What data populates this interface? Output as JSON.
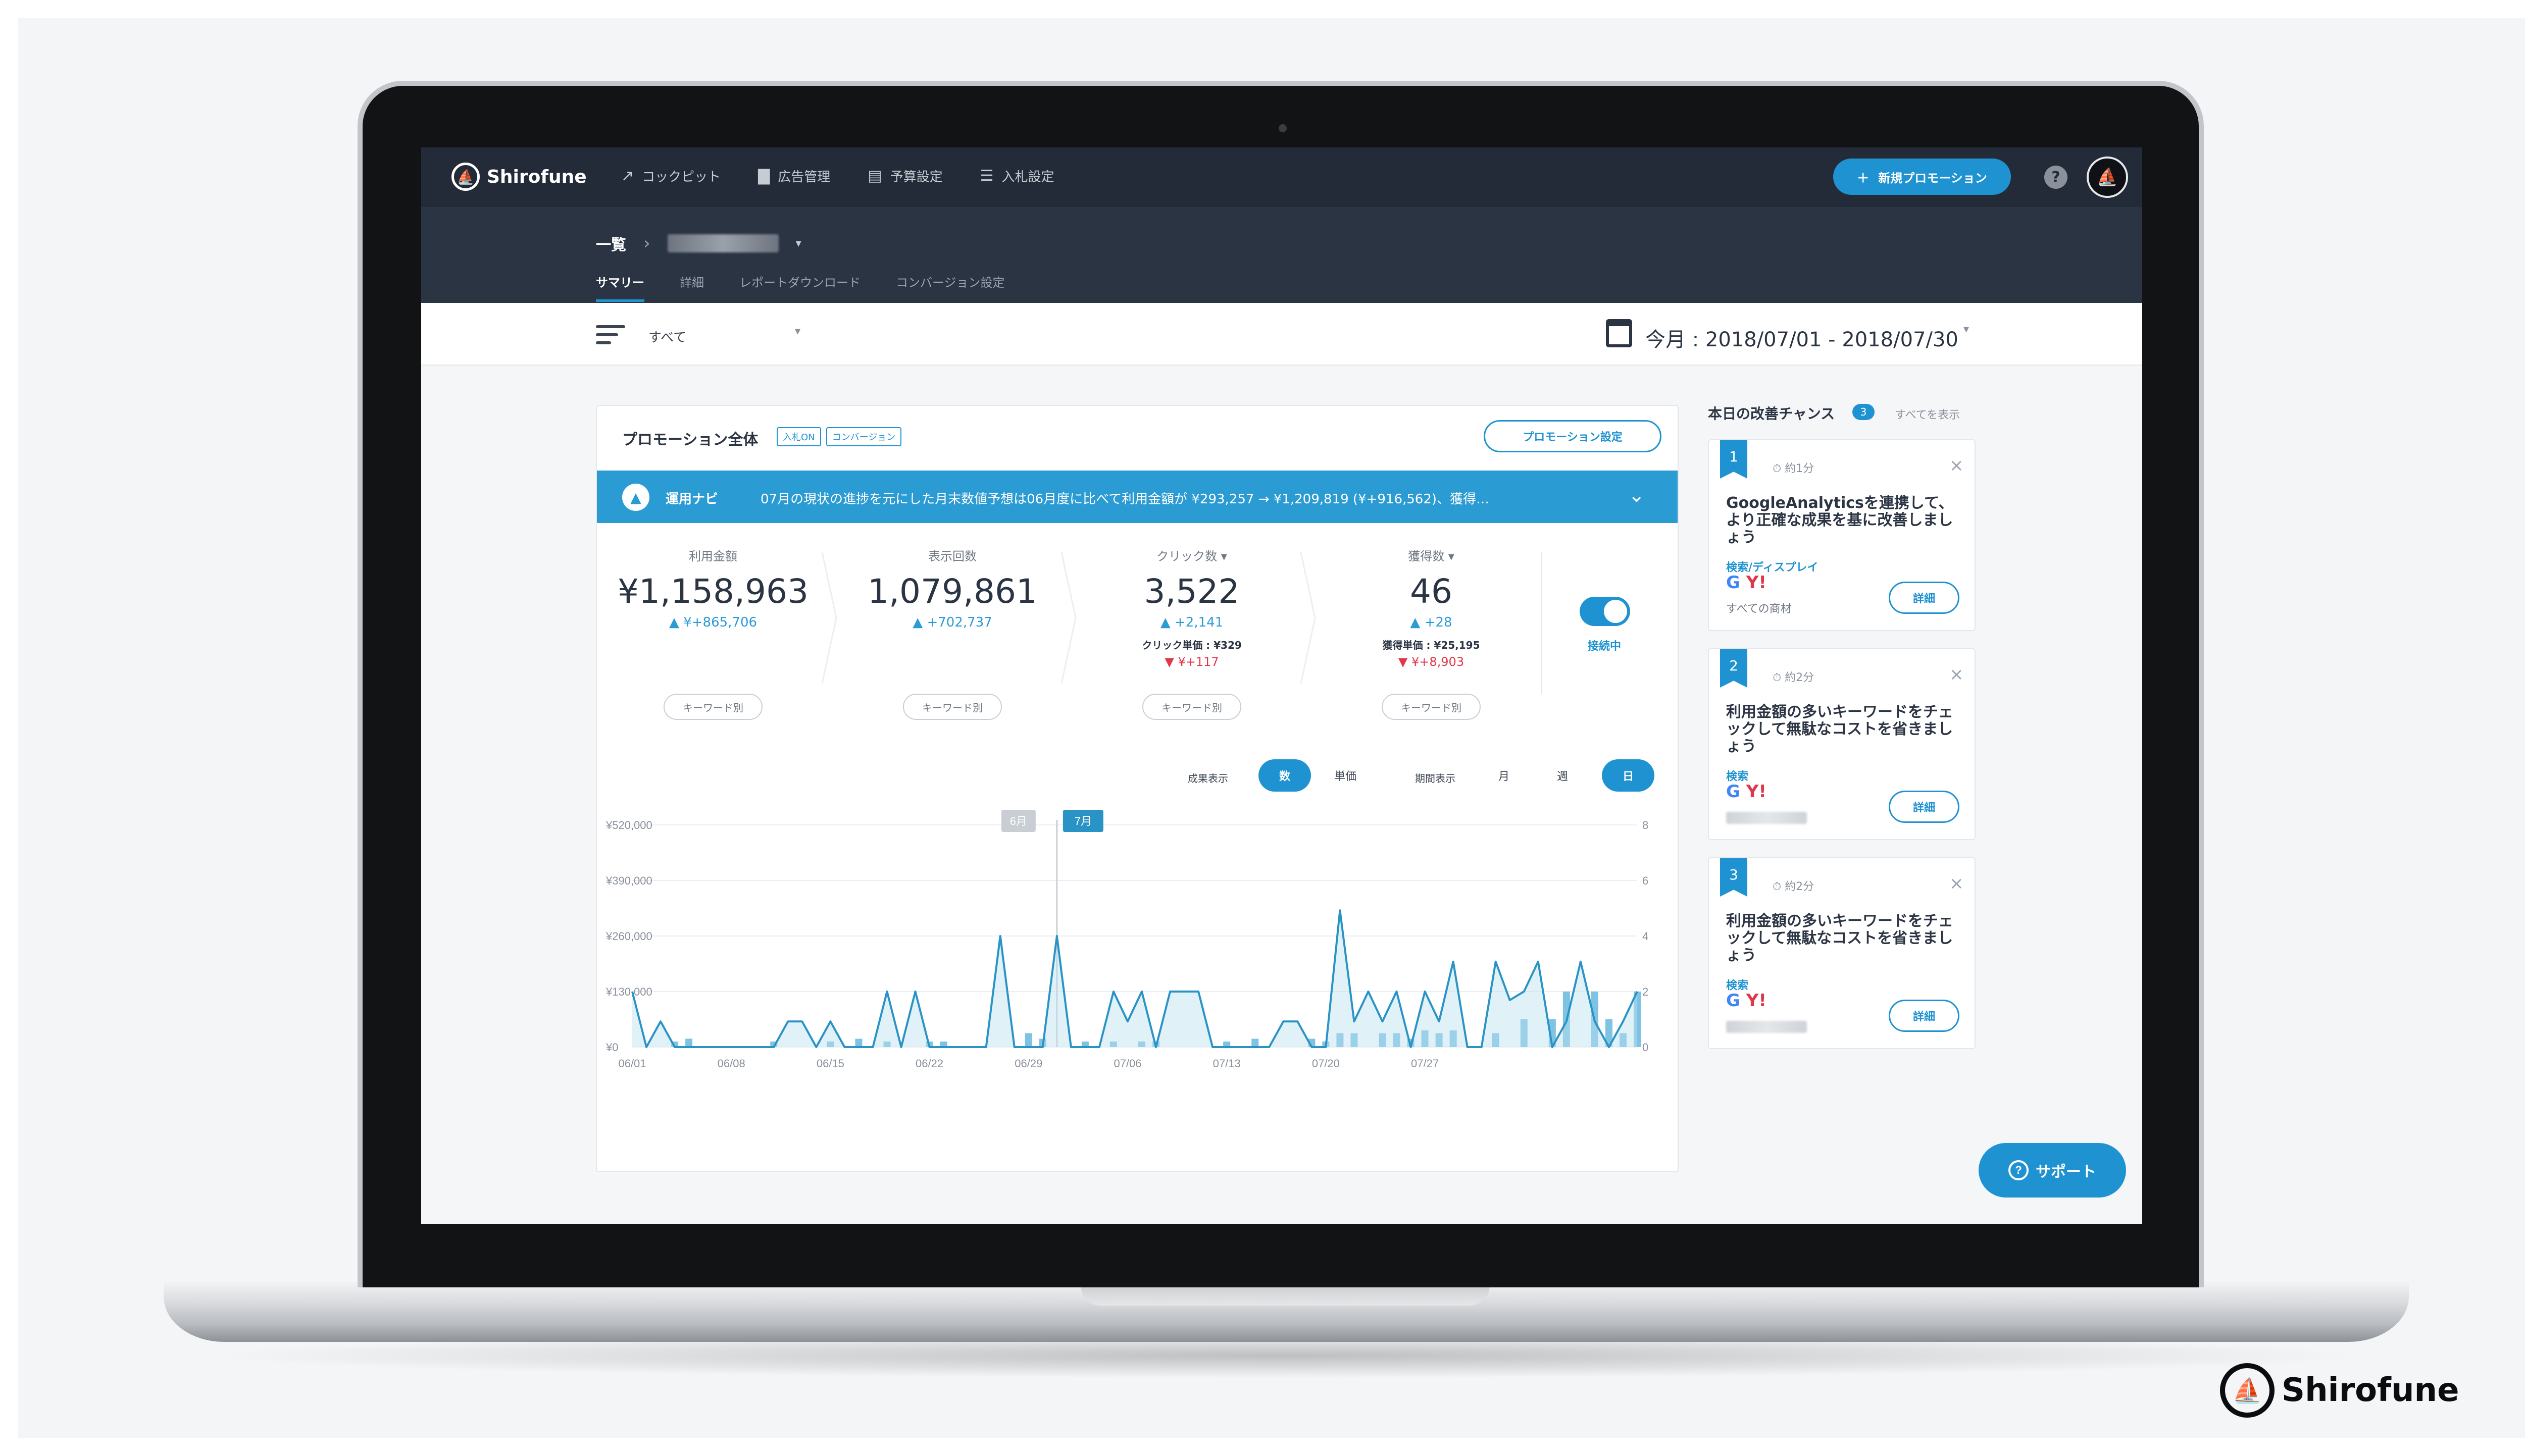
{
  "nav": {
    "brand": "Shirofune",
    "items": [
      {
        "label": "コックピット",
        "icon": "trend-icon",
        "glyph": "↗"
      },
      {
        "label": "広告管理",
        "icon": "folder-icon",
        "glyph": "▇"
      },
      {
        "label": "予算設定",
        "icon": "wallet-icon",
        "glyph": "▤"
      },
      {
        "label": "入札設定",
        "icon": "sliders-icon",
        "glyph": "☰"
      }
    ],
    "new_promo_label": "新規プロモーション",
    "help_glyph": "?"
  },
  "subheader": {
    "root": "一覧",
    "tabs": [
      "サマリー",
      "詳細",
      "レポートダウンロード",
      "コンバージョン設定"
    ],
    "active_tab": 0
  },
  "filterbar": {
    "filter_value": "すべて",
    "date_range": "今月 : 2018/07/01 - 2018/07/30"
  },
  "card": {
    "title": "プロモーション全体",
    "tags": [
      "入札ON",
      "コンバージョン"
    ],
    "setting_label": "プロモーション設定",
    "navi_label": "運用ナビ",
    "navi_text": "07月の現状の進捗を元にした月末数値予想は06月度に比べて利用金額が ¥293,257 → ¥1,209,819 (¥+916,562)、獲得…",
    "metrics": [
      {
        "label": "利用金額",
        "value": "¥1,158,963",
        "delta": "¥+865,706",
        "kw": "キーワード別"
      },
      {
        "label": "表示回数",
        "value": "1,079,861",
        "delta": "+702,737",
        "kw": "キーワード別"
      },
      {
        "label": "クリック数",
        "value": "3,522",
        "delta": "+2,141",
        "sub": "クリック単価 : ¥329",
        "sub_delta": "¥+117",
        "kw": "キーワード別"
      },
      {
        "label": "獲得数",
        "value": "46",
        "delta": "+28",
        "sub": "獲得単価 : ¥25,195",
        "sub_delta": "¥+8,903",
        "kw": "キーワード別"
      }
    ],
    "connection_label": "接続中",
    "result_label": "成果表示",
    "result_options": [
      "数",
      "単価"
    ],
    "period_label": "期間表示",
    "period_options": [
      "月",
      "週",
      "日"
    ]
  },
  "chart_data": {
    "type": "line",
    "month_labels": [
      "6月",
      "7月"
    ],
    "x_ticks": [
      "06/01",
      "06/08",
      "06/15",
      "06/22",
      "06/29",
      "07/06",
      "07/13",
      "07/20",
      "07/27"
    ],
    "y_left_ticks": [
      "¥520,000",
      "¥390,000",
      "¥260,000",
      "¥130,000",
      "¥0"
    ],
    "y_right_ticks": [
      "8",
      "6",
      "4",
      "2",
      "0"
    ],
    "y_left_range": [
      0,
      520000
    ],
    "y_right_range": [
      0,
      8
    ],
    "series": [
      {
        "values": [
          130000,
          0,
          60000,
          0,
          0,
          0,
          0,
          0,
          0,
          0,
          0,
          60000,
          60000,
          0,
          60000,
          0,
          0,
          0,
          130000,
          0,
          130000,
          0,
          0,
          0,
          0,
          0,
          260000,
          0,
          0,
          0,
          260000,
          0,
          0,
          0,
          130000,
          60000,
          130000,
          0,
          130000,
          130000,
          130000,
          0,
          0,
          0,
          0,
          0,
          60000,
          60000,
          0,
          0,
          320000,
          60000,
          130000,
          60000,
          130000,
          0,
          130000,
          60000,
          200000,
          0,
          0,
          200000,
          110000,
          130000,
          200000,
          0,
          60000,
          200000,
          60000,
          0,
          60000,
          130000
        ]
      },
      {
        "values": [
          0,
          0,
          0,
          0.2,
          0.3,
          0,
          0,
          0,
          0,
          0,
          0.2,
          0,
          0,
          0,
          0.2,
          0,
          0.3,
          0,
          0.2,
          0,
          0,
          0.2,
          0.2,
          0,
          0,
          0,
          0,
          0,
          0.5,
          0.3,
          0,
          0,
          0.2,
          0,
          0.2,
          0,
          0.2,
          0.2,
          0,
          0,
          0,
          0,
          0.2,
          0,
          0.3,
          0,
          0,
          0,
          0.3,
          0.2,
          0.5,
          0.5,
          0,
          0.5,
          0.5,
          0.3,
          0.6,
          0.5,
          0.6,
          0,
          0,
          0.5,
          0,
          1,
          0,
          1,
          2,
          0,
          2,
          1,
          0.5,
          2
        ]
      }
    ],
    "colors": {
      "line": "#2a93c6",
      "fill": "#bde0f0",
      "bar": "#7fc3e2"
    }
  },
  "right_panel": {
    "title": "本日の改善チャンス",
    "count": "3",
    "view_all": "すべてを表示",
    "tips": [
      {
        "num": "1",
        "time": "約1分",
        "text": "GoogleAnalyticsを連携して、より正確な成果を基に改善しましょう",
        "category": "検索/ディスプレイ",
        "footer": "すべての商材",
        "detail": "詳細"
      },
      {
        "num": "2",
        "time": "約2分",
        "text": "利用金額の多いキーワードをチェックして無駄なコストを省きましょう",
        "category": "検索",
        "footer": "",
        "detail": "詳細"
      },
      {
        "num": "3",
        "time": "約2分",
        "text": "利用金額の多いキーワードをチェックして無駄なコストを省きましょう",
        "category": "検索",
        "footer": "",
        "detail": "詳細"
      }
    ]
  },
  "support_label": "サポート",
  "corner_brand": "Shirofune"
}
